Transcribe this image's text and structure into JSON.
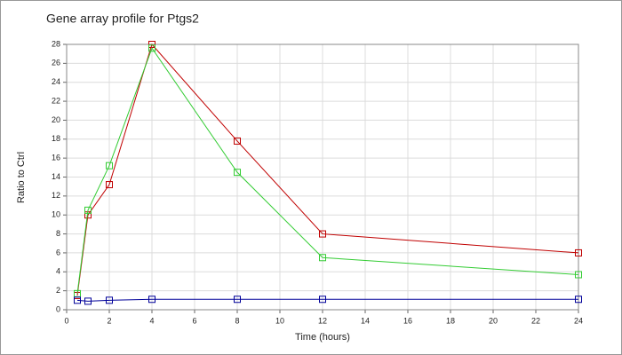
{
  "chart_data": {
    "type": "line",
    "title": "Gene array profile for Ptgs2",
    "xlabel": "Time (hours)",
    "ylabel": "Ratio to Ctrl",
    "x": [
      0.5,
      1,
      2,
      4,
      8,
      12,
      24
    ],
    "series": [
      {
        "color": "#c00000",
        "values": [
          1.5,
          10,
          13.2,
          28,
          17.8,
          8,
          6
        ]
      },
      {
        "color": "#33cc33",
        "values": [
          1.7,
          10.5,
          15.2,
          27.6,
          14.5,
          5.5,
          3.7
        ]
      },
      {
        "color": "#000099",
        "values": [
          1.0,
          0.9,
          1.0,
          1.1,
          1.1,
          1.1,
          1.1
        ]
      }
    ],
    "xlim": [
      0,
      24
    ],
    "xticks": [
      0,
      2,
      4,
      6,
      8,
      10,
      12,
      14,
      16,
      18,
      20,
      22,
      24
    ],
    "ylim": [
      0,
      28
    ],
    "yticks": [
      0,
      2,
      4,
      6,
      8,
      10,
      12,
      14,
      16,
      18,
      20,
      22,
      24,
      26,
      28
    ],
    "grid": true
  }
}
